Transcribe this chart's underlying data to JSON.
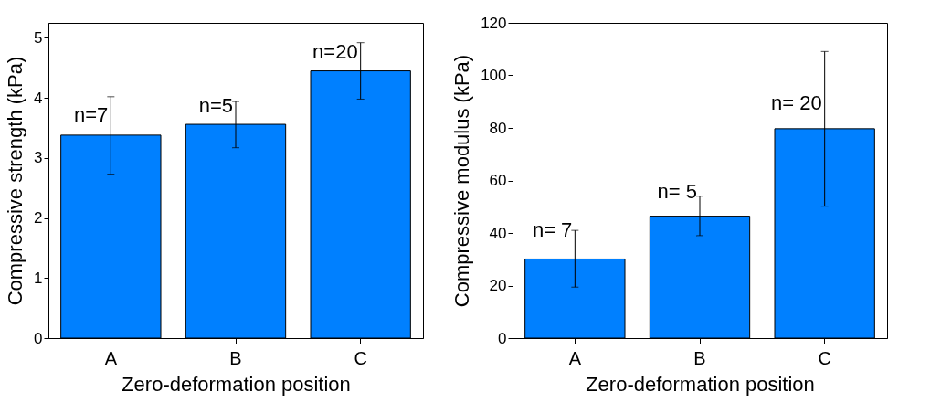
{
  "chart_data": [
    {
      "type": "bar",
      "categories": [
        "A",
        "B",
        "C"
      ],
      "values": [
        3.38,
        3.56,
        4.45
      ],
      "errors": [
        [
          2.73,
          4.02
        ],
        [
          3.17,
          3.94
        ],
        [
          3.98,
          4.92
        ]
      ],
      "color": "#0080ff",
      "xlabel": "Zero-deformation position",
      "ylabel": "Compressive strength (kPa)",
      "ylim": [
        0,
        5.25
      ],
      "yticks": [
        0,
        1,
        2,
        3,
        4,
        5
      ],
      "annotations": [
        {
          "text": "n=7",
          "x": "A",
          "y": 3.71
        },
        {
          "text": "n=5",
          "x": "B",
          "y": 3.86
        },
        {
          "text": "n=20",
          "x": "C",
          "y": 4.77
        }
      ],
      "grid": false
    },
    {
      "type": "bar",
      "categories": [
        "A",
        "B",
        "C"
      ],
      "values": [
        30.1,
        46.4,
        79.7
      ],
      "errors": [
        [
          19.4,
          41.0
        ],
        [
          39.0,
          54.0
        ],
        [
          50.2,
          109.1
        ]
      ],
      "color": "#0080ff",
      "xlabel": "Zero-deformation position",
      "ylabel": "Compressive modulus (kPa)",
      "ylim": [
        0,
        120
      ],
      "yticks": [
        0,
        20,
        40,
        60,
        80,
        100,
        120
      ],
      "annotations": [
        {
          "text": "n= 7",
          "x": "A",
          "y": 40.9
        },
        {
          "text": "n= 5",
          "x": "B",
          "y": 55.6
        },
        {
          "text": "n= 20",
          "x": "C",
          "y": 89.3
        }
      ],
      "grid": false
    }
  ]
}
